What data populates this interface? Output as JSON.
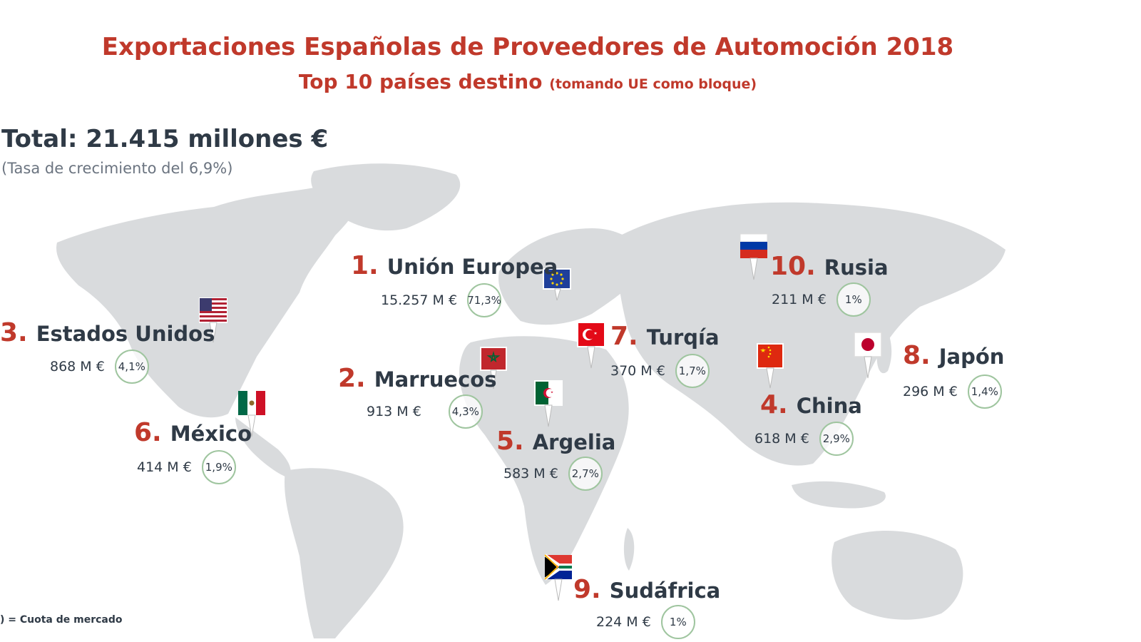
{
  "title": "Exportaciones Españolas de Proveedores de Automoción 2018",
  "subtitle": "Top 10 países destino",
  "subtitle_note": "(tomando UE como bloque)",
  "total": "Total: 21.415 millones €",
  "growth": "(Tasa de crecimiento del 6,9%)",
  "legend_note": ") = Cuota de mercado",
  "colors": {
    "accent": "#c0392b",
    "land": "#d9dbdd",
    "text": "#2f3a46",
    "share_ring": "#9fc59f"
  },
  "destinations": [
    {
      "rank": "1.",
      "name": "Unión Europea",
      "value": "15.257 M €",
      "share": "71,3%",
      "flag": "eu-flag"
    },
    {
      "rank": "2.",
      "name": "Marruecos",
      "value": "913 M €",
      "share": "4,3%",
      "flag": "morocco-flag"
    },
    {
      "rank": "3.",
      "name": "Estados Unidos",
      "value": "868 M €",
      "share": "4,1%",
      "flag": "usa-flag"
    },
    {
      "rank": "4.",
      "name": "China",
      "value": "618 M €",
      "share": "2,9%",
      "flag": "china-flag"
    },
    {
      "rank": "5.",
      "name": "Argelia",
      "value": "583 M €",
      "share": "2,7%",
      "flag": "algeria-flag"
    },
    {
      "rank": "6.",
      "name": "México",
      "value": "414 M €",
      "share": "1,9%",
      "flag": "mexico-flag"
    },
    {
      "rank": "7.",
      "name": "Turqía",
      "value": "370 M €",
      "share": "1,7%",
      "flag": "turkey-flag"
    },
    {
      "rank": "8.",
      "name": "Japón",
      "value": "296 M €",
      "share": "1,4%",
      "flag": "japan-flag"
    },
    {
      "rank": "9.",
      "name": "Sudáfrica",
      "value": "224 M €",
      "share": "1%",
      "flag": "south-africa-flag"
    },
    {
      "rank": "10.",
      "name": "Rusia",
      "value": "211 M €",
      "share": "1%",
      "flag": "russia-flag"
    }
  ]
}
